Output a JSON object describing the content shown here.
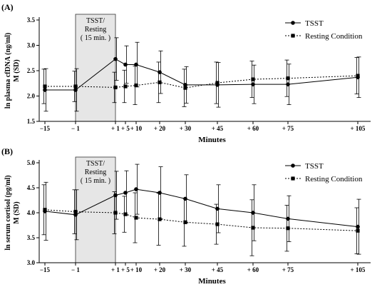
{
  "chart_data": [
    {
      "type": "line",
      "panel_label": "(A)",
      "ylabel_line1": "ln plasma cfDNA (ng/ml)",
      "ylabel_line2": "M (SD)",
      "xlabel": "Minutes",
      "ylim": [
        1.5,
        3.5
      ],
      "yticks": [
        1.5,
        2.0,
        2.5,
        3.0,
        3.5
      ],
      "ytick_labels": [
        "1.5",
        "2.0",
        "2.5",
        "3.0",
        "3.5"
      ],
      "x": [
        -15,
        -1,
        1,
        5,
        10,
        20,
        30,
        45,
        60,
        75,
        105
      ],
      "xtick_labels": [
        "−15",
        "− 1",
        "+ 1",
        "+ 5",
        "+ 10",
        "+ 20",
        "+ 30",
        "+ 45",
        "+ 60",
        "+ 75",
        "+ 105"
      ],
      "stress_box": {
        "x_start": -1,
        "x_end": 1,
        "line1": "TSST/",
        "line2": "Resting",
        "line3": "( 15 min. )"
      },
      "series": [
        {
          "name": "TSST",
          "style": "solid",
          "marker": "circle",
          "values": [
            2.12,
            2.12,
            2.73,
            2.62,
            2.62,
            2.47,
            2.22,
            2.22,
            2.23,
            2.23,
            2.37
          ],
          "sd": [
            0.42,
            0.42,
            0.42,
            0.37,
            0.44,
            0.42,
            0.36,
            0.44,
            0.38,
            0.4,
            0.4
          ]
        },
        {
          "name": "Resting Condition",
          "style": "dashed",
          "marker": "square",
          "values": [
            2.19,
            2.19,
            2.17,
            2.19,
            2.21,
            2.27,
            2.16,
            2.26,
            2.33,
            2.35,
            2.4
          ],
          "sd": [
            0.34,
            0.3,
            0.3,
            0.32,
            0.38,
            0.4,
            0.37,
            0.41,
            0.36,
            0.36,
            0.36
          ]
        }
      ],
      "legend_position": "top-right"
    },
    {
      "type": "line",
      "panel_label": "(B)",
      "ylabel_line1": "ln serum cortisol (pg/ml)",
      "ylabel_line2": "M (SD)",
      "xlabel": "Minutes",
      "ylim": [
        3.0,
        5.0
      ],
      "yticks": [
        3.0,
        3.5,
        4.0,
        4.5,
        5.0
      ],
      "ytick_labels": [
        "3.0",
        "3.5",
        "4.0",
        "4.5",
        "5.0"
      ],
      "x": [
        -15,
        -1,
        1,
        5,
        10,
        20,
        30,
        45,
        60,
        75,
        105
      ],
      "xtick_labels": [
        "−15",
        "− 1",
        "+ 1",
        "+ 5",
        "+ 10",
        "+ 20",
        "+ 30",
        "+ 45",
        "+ 60",
        "+ 75",
        "+ 105"
      ],
      "stress_box": {
        "x_start": -1,
        "x_end": 1,
        "line1": "TSST/",
        "line2": "Resting",
        "line3": "( 15 min. )"
      },
      "series": [
        {
          "name": "TSST",
          "style": "solid",
          "marker": "circle",
          "values": [
            4.03,
            3.96,
            4.35,
            4.4,
            4.47,
            4.4,
            4.28,
            4.08,
            4.0,
            3.88,
            3.72
          ],
          "sd": [
            0.58,
            0.5,
            0.48,
            0.44,
            0.5,
            0.52,
            0.48,
            0.48,
            0.56,
            0.46,
            0.55
          ]
        },
        {
          "name": "Resting Condition",
          "style": "dashed",
          "marker": "square",
          "values": [
            4.06,
            4.02,
            4.0,
            3.97,
            3.9,
            3.87,
            3.81,
            3.77,
            3.7,
            3.69,
            3.64
          ],
          "sd": [
            0.5,
            0.44,
            0.42,
            0.36,
            0.5,
            0.52,
            0.48,
            0.4,
            0.56,
            0.46,
            0.46
          ]
        }
      ],
      "legend_position": "top-right"
    }
  ]
}
